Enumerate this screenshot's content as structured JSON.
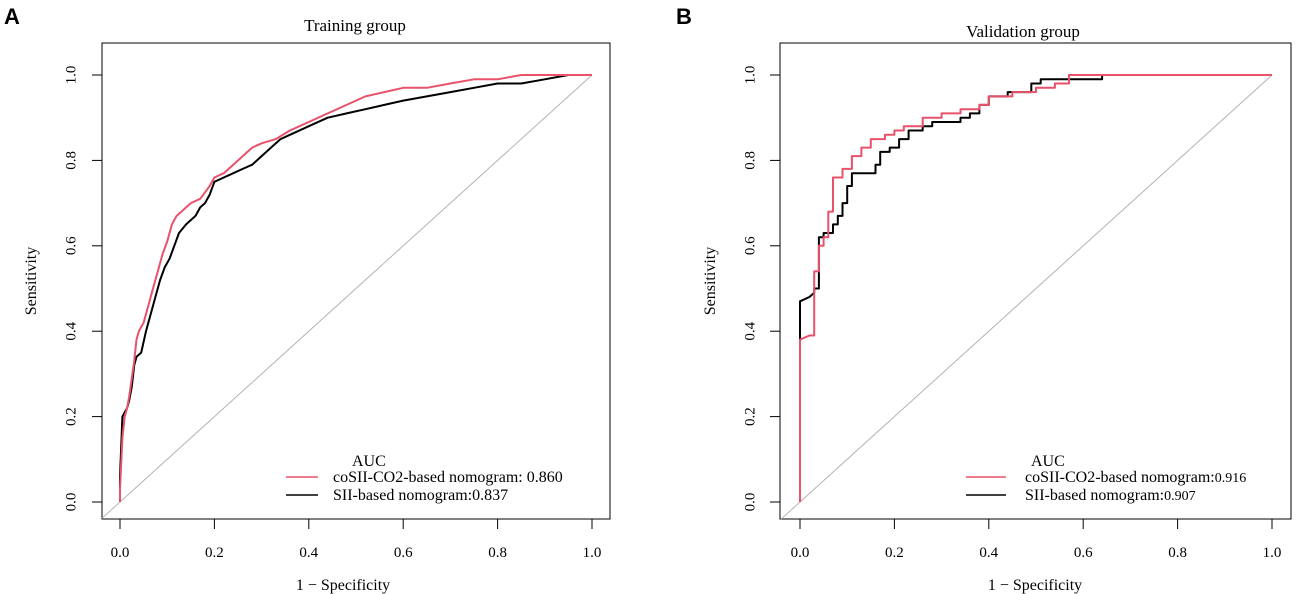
{
  "colors": {
    "series1": "#e8526a",
    "series2": "#000000",
    "diagonal": "#b3b3b3",
    "axis": "#000000"
  },
  "chart_data": [
    {
      "type": "line",
      "panel_label": "A",
      "title": "Training group",
      "xlabel": "1 − Specificity",
      "ylabel": "Sensitivity",
      "xlim": [
        0,
        1
      ],
      "ylim": [
        0,
        1
      ],
      "xticks": [
        "0.0",
        "0.2",
        "0.4",
        "0.6",
        "0.8",
        "1.0"
      ],
      "yticks": [
        "0.0",
        "0.2",
        "0.4",
        "0.6",
        "0.8",
        "1.0"
      ],
      "legend": {
        "title": "AUC",
        "position": "bottom-right"
      },
      "series": [
        {
          "name": "coSII-CO2-based nomogram",
          "legend_label": "coSII-CO2-based nomogram: 0.860",
          "color": "#e8526a",
          "points": [
            [
              0,
              0
            ],
            [
              0,
              0.03
            ],
            [
              0.005,
              0.15
            ],
            [
              0.01,
              0.2
            ],
            [
              0.015,
              0.22
            ],
            [
              0.02,
              0.25
            ],
            [
              0.025,
              0.29
            ],
            [
              0.03,
              0.33
            ],
            [
              0.035,
              0.38
            ],
            [
              0.04,
              0.4
            ],
            [
              0.05,
              0.42
            ],
            [
              0.06,
              0.46
            ],
            [
              0.07,
              0.5
            ],
            [
              0.08,
              0.54
            ],
            [
              0.09,
              0.58
            ],
            [
              0.1,
              0.61
            ],
            [
              0.11,
              0.65
            ],
            [
              0.12,
              0.67
            ],
            [
              0.13,
              0.68
            ],
            [
              0.15,
              0.7
            ],
            [
              0.17,
              0.71
            ],
            [
              0.19,
              0.74
            ],
            [
              0.2,
              0.76
            ],
            [
              0.22,
              0.77
            ],
            [
              0.24,
              0.79
            ],
            [
              0.26,
              0.81
            ],
            [
              0.28,
              0.83
            ],
            [
              0.3,
              0.84
            ],
            [
              0.33,
              0.85
            ],
            [
              0.36,
              0.87
            ],
            [
              0.4,
              0.89
            ],
            [
              0.44,
              0.91
            ],
            [
              0.48,
              0.93
            ],
            [
              0.52,
              0.95
            ],
            [
              0.56,
              0.96
            ],
            [
              0.6,
              0.97
            ],
            [
              0.65,
              0.97
            ],
            [
              0.7,
              0.98
            ],
            [
              0.75,
              0.99
            ],
            [
              0.8,
              0.99
            ],
            [
              0.85,
              1.0
            ],
            [
              0.9,
              1.0
            ],
            [
              1.0,
              1.0
            ]
          ]
        },
        {
          "name": "SII-based nomogram",
          "legend_label": "SII-based nomogram:0.837",
          "color": "#000000",
          "points": [
            [
              0,
              0
            ],
            [
              0,
              0.06
            ],
            [
              0.005,
              0.2
            ],
            [
              0.01,
              0.21
            ],
            [
              0.015,
              0.22
            ],
            [
              0.02,
              0.24
            ],
            [
              0.025,
              0.27
            ],
            [
              0.03,
              0.32
            ],
            [
              0.035,
              0.34
            ],
            [
              0.045,
              0.35
            ],
            [
              0.055,
              0.4
            ],
            [
              0.065,
              0.44
            ],
            [
              0.075,
              0.48
            ],
            [
              0.085,
              0.52
            ],
            [
              0.095,
              0.55
            ],
            [
              0.105,
              0.57
            ],
            [
              0.115,
              0.6
            ],
            [
              0.125,
              0.63
            ],
            [
              0.14,
              0.65
            ],
            [
              0.16,
              0.67
            ],
            [
              0.17,
              0.69
            ],
            [
              0.18,
              0.7
            ],
            [
              0.19,
              0.72
            ],
            [
              0.2,
              0.75
            ],
            [
              0.22,
              0.76
            ],
            [
              0.24,
              0.77
            ],
            [
              0.26,
              0.78
            ],
            [
              0.28,
              0.79
            ],
            [
              0.3,
              0.81
            ],
            [
              0.32,
              0.83
            ],
            [
              0.34,
              0.85
            ],
            [
              0.36,
              0.86
            ],
            [
              0.4,
              0.88
            ],
            [
              0.44,
              0.9
            ],
            [
              0.48,
              0.91
            ],
            [
              0.52,
              0.92
            ],
            [
              0.56,
              0.93
            ],
            [
              0.6,
              0.94
            ],
            [
              0.65,
              0.95
            ],
            [
              0.7,
              0.96
            ],
            [
              0.75,
              0.97
            ],
            [
              0.8,
              0.98
            ],
            [
              0.85,
              0.98
            ],
            [
              0.9,
              0.99
            ],
            [
              0.95,
              1.0
            ],
            [
              1.0,
              1.0
            ]
          ]
        }
      ]
    },
    {
      "type": "line",
      "panel_label": "B",
      "title": "Validation group",
      "xlabel": "1 − Specificity",
      "ylabel": "Sensitivity",
      "xlim": [
        0,
        1
      ],
      "ylim": [
        0,
        1
      ],
      "xticks": [
        "0.0",
        "0.2",
        "0.4",
        "0.6",
        "0.8",
        "1.0"
      ],
      "yticks": [
        "0.0",
        "0.2",
        "0.4",
        "0.6",
        "0.8",
        "1.0"
      ],
      "legend": {
        "title": "AUC",
        "position": "bottom-right"
      },
      "series": [
        {
          "name": "coSII-CO2-based nomogram",
          "legend_label": "coSII-CO2-based nomogram:",
          "auc": "0.916",
          "color": "#e8526a",
          "points": [
            [
              0,
              0
            ],
            [
              0,
              0.38
            ],
            [
              0.02,
              0.39
            ],
            [
              0.03,
              0.39
            ],
            [
              0.03,
              0.54
            ],
            [
              0.04,
              0.54
            ],
            [
              0.04,
              0.6
            ],
            [
              0.05,
              0.6
            ],
            [
              0.05,
              0.62
            ],
            [
              0.06,
              0.62
            ],
            [
              0.06,
              0.68
            ],
            [
              0.07,
              0.68
            ],
            [
              0.07,
              0.76
            ],
            [
              0.09,
              0.76
            ],
            [
              0.09,
              0.78
            ],
            [
              0.11,
              0.78
            ],
            [
              0.11,
              0.81
            ],
            [
              0.13,
              0.81
            ],
            [
              0.13,
              0.83
            ],
            [
              0.15,
              0.83
            ],
            [
              0.15,
              0.85
            ],
            [
              0.18,
              0.85
            ],
            [
              0.18,
              0.86
            ],
            [
              0.2,
              0.86
            ],
            [
              0.2,
              0.87
            ],
            [
              0.22,
              0.87
            ],
            [
              0.22,
              0.88
            ],
            [
              0.26,
              0.88
            ],
            [
              0.26,
              0.9
            ],
            [
              0.3,
              0.9
            ],
            [
              0.3,
              0.91
            ],
            [
              0.34,
              0.91
            ],
            [
              0.34,
              0.92
            ],
            [
              0.38,
              0.92
            ],
            [
              0.38,
              0.93
            ],
            [
              0.4,
              0.93
            ],
            [
              0.4,
              0.95
            ],
            [
              0.45,
              0.95
            ],
            [
              0.45,
              0.96
            ],
            [
              0.5,
              0.96
            ],
            [
              0.5,
              0.97
            ],
            [
              0.54,
              0.97
            ],
            [
              0.54,
              0.98
            ],
            [
              0.57,
              0.98
            ],
            [
              0.57,
              1.0
            ],
            [
              1.0,
              1.0
            ]
          ]
        },
        {
          "name": "SII-based nomogram",
          "legend_label": "SII-based nomogram:",
          "auc": "0.907",
          "color": "#000000",
          "points": [
            [
              0,
              0
            ],
            [
              0,
              0.47
            ],
            [
              0.02,
              0.48
            ],
            [
              0.03,
              0.49
            ],
            [
              0.03,
              0.5
            ],
            [
              0.04,
              0.5
            ],
            [
              0.04,
              0.62
            ],
            [
              0.05,
              0.62
            ],
            [
              0.05,
              0.63
            ],
            [
              0.07,
              0.63
            ],
            [
              0.07,
              0.65
            ],
            [
              0.08,
              0.65
            ],
            [
              0.08,
              0.67
            ],
            [
              0.09,
              0.67
            ],
            [
              0.09,
              0.7
            ],
            [
              0.1,
              0.7
            ],
            [
              0.1,
              0.74
            ],
            [
              0.11,
              0.74
            ],
            [
              0.11,
              0.77
            ],
            [
              0.16,
              0.77
            ],
            [
              0.16,
              0.79
            ],
            [
              0.17,
              0.79
            ],
            [
              0.17,
              0.82
            ],
            [
              0.19,
              0.82
            ],
            [
              0.19,
              0.83
            ],
            [
              0.21,
              0.83
            ],
            [
              0.21,
              0.85
            ],
            [
              0.23,
              0.85
            ],
            [
              0.23,
              0.87
            ],
            [
              0.26,
              0.87
            ],
            [
              0.26,
              0.88
            ],
            [
              0.28,
              0.88
            ],
            [
              0.28,
              0.89
            ],
            [
              0.34,
              0.89
            ],
            [
              0.34,
              0.9
            ],
            [
              0.36,
              0.9
            ],
            [
              0.36,
              0.91
            ],
            [
              0.38,
              0.91
            ],
            [
              0.38,
              0.93
            ],
            [
              0.4,
              0.93
            ],
            [
              0.4,
              0.95
            ],
            [
              0.44,
              0.95
            ],
            [
              0.44,
              0.96
            ],
            [
              0.49,
              0.96
            ],
            [
              0.49,
              0.98
            ],
            [
              0.51,
              0.98
            ],
            [
              0.51,
              0.99
            ],
            [
              0.55,
              0.99
            ],
            [
              0.55,
              0.99
            ],
            [
              0.64,
              0.99
            ],
            [
              0.64,
              1.0
            ],
            [
              1.0,
              1.0
            ]
          ]
        }
      ]
    }
  ]
}
